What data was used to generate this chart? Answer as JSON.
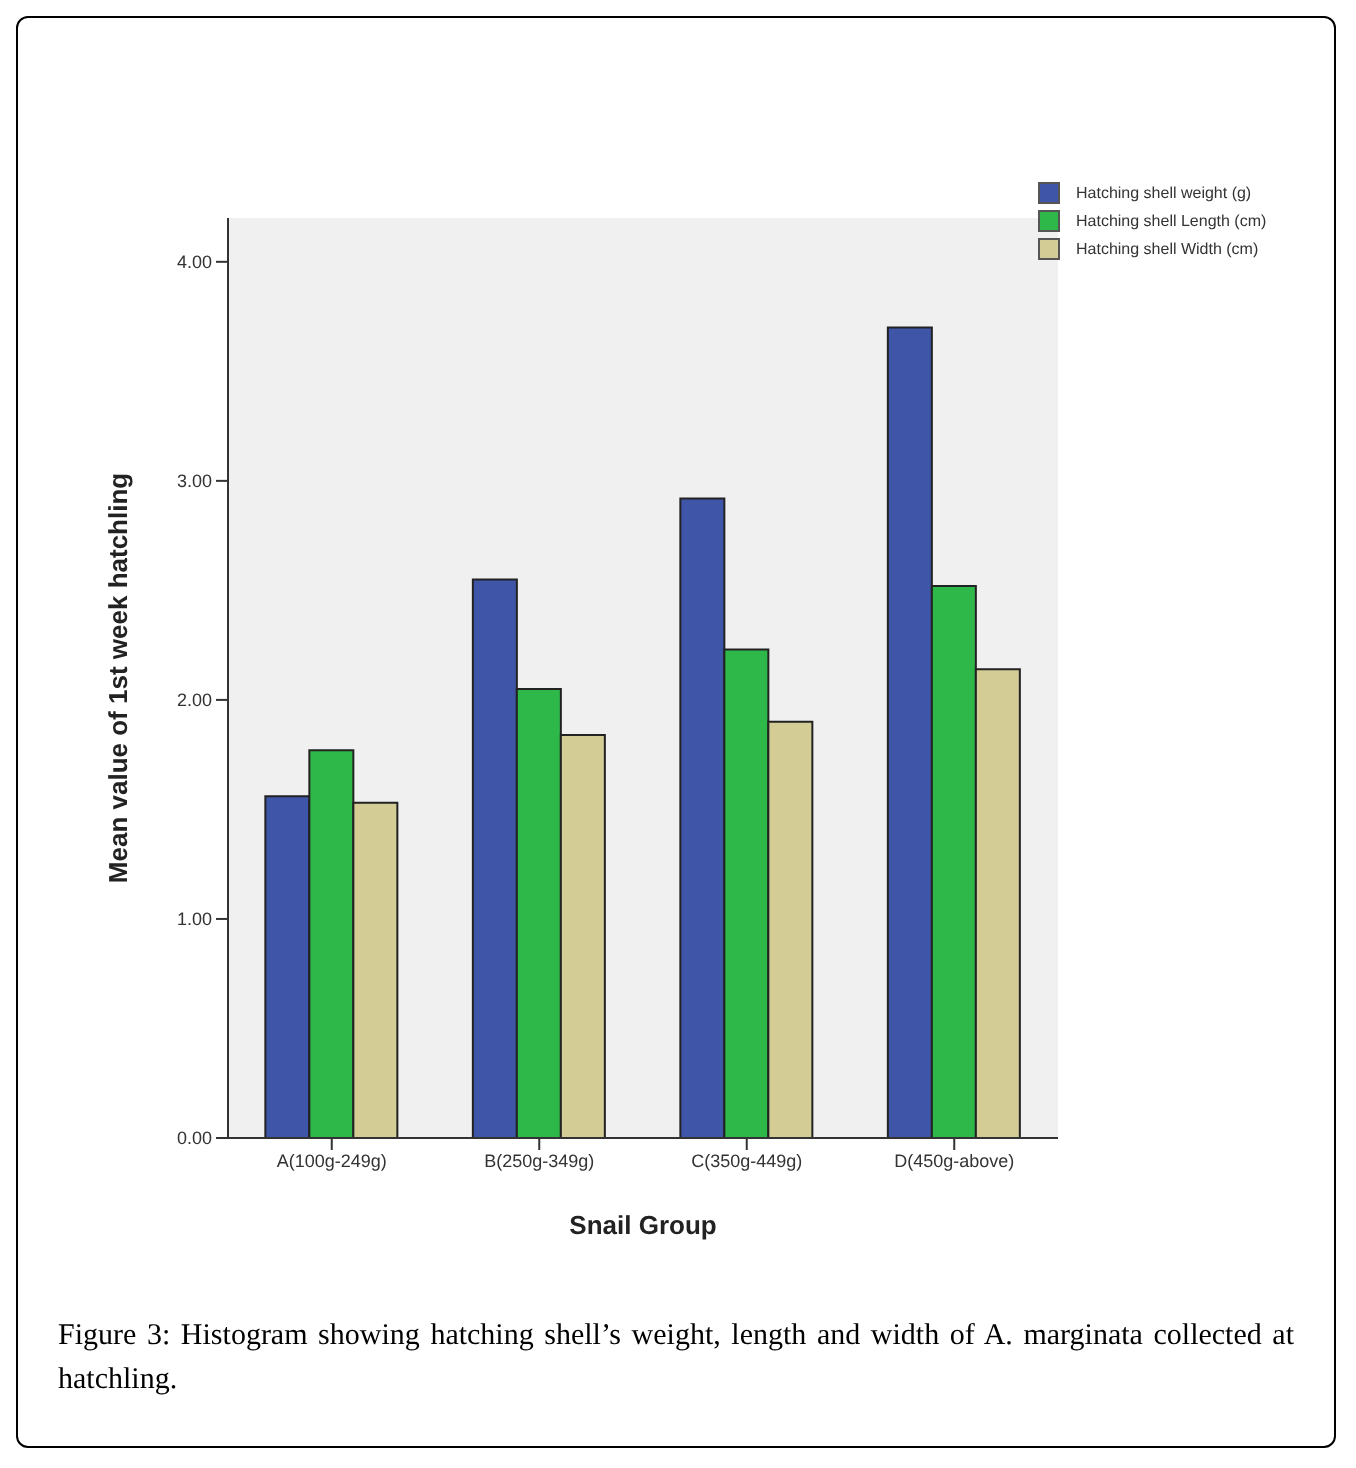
{
  "chart_data": {
    "type": "bar",
    "xlabel": "Snail Group",
    "ylabel": "Mean value of 1st week hatchling",
    "categories": [
      "A(100g-249g)",
      "B(250g-349g)",
      "C(350g-449g)",
      "D(450g-above)"
    ],
    "series": [
      {
        "name": "Hatching shell weight (g)",
        "color": "#3e55a8",
        "values": [
          1.56,
          2.55,
          2.92,
          3.7
        ]
      },
      {
        "name": "Hatching shell Length (cm)",
        "color": "#2fb84a",
        "values": [
          1.77,
          2.05,
          2.23,
          2.52
        ]
      },
      {
        "name": "Hatching shell Width (cm)",
        "color": "#d3cd95",
        "values": [
          1.53,
          1.84,
          1.9,
          2.14
        ]
      }
    ],
    "ylim": [
      0,
      4.2
    ],
    "yticks": [
      {
        "value": 0,
        "label": "0.00"
      },
      {
        "value": 1,
        "label": "1.00"
      },
      {
        "value": 2,
        "label": "2.00"
      },
      {
        "value": 3,
        "label": "3.00"
      },
      {
        "value": 4,
        "label": "4.00"
      }
    ],
    "grid": false,
    "legend": "top right",
    "annotations": [
      "Figure 3: Histogram showing hatching shell’s weight, length and width of A. marginata collected at hatchling."
    ]
  }
}
